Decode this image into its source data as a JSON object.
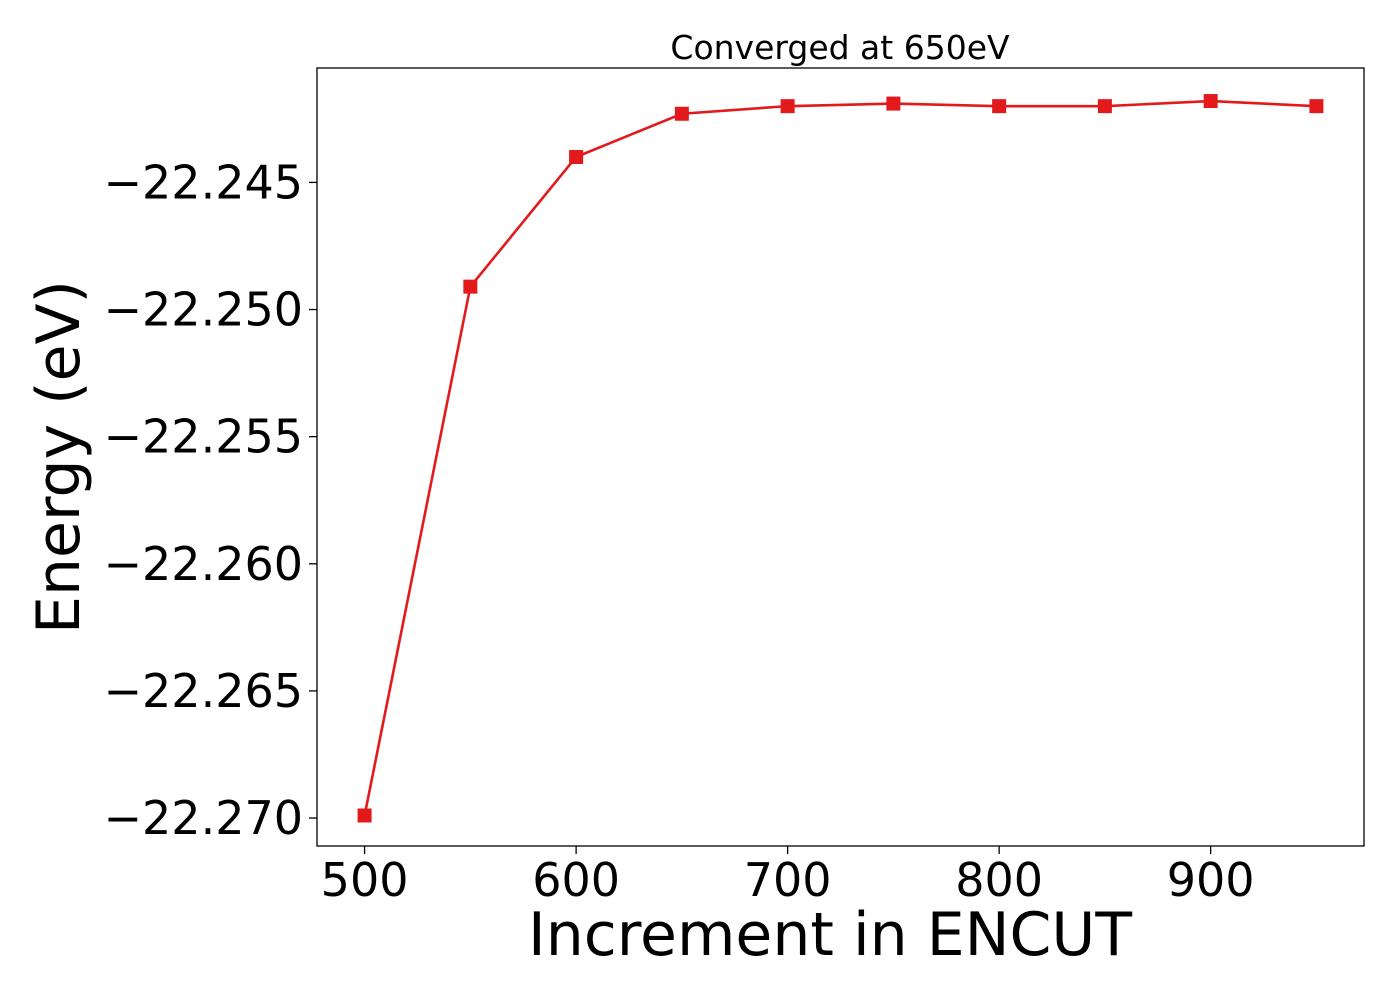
{
  "chart_data": {
    "type": "line",
    "title": "Converged at 650eV",
    "xlabel": "Increment in ENCUT",
    "ylabel": "Energy (eV)",
    "xlim": [
      477.5,
      972.5
    ],
    "ylim": [
      -22.2711,
      -22.2405
    ],
    "xticks": [
      500,
      600,
      700,
      800,
      900
    ],
    "xtick_labels": [
      "500",
      "600",
      "700",
      "800",
      "900"
    ],
    "yticks": [
      -22.245,
      -22.25,
      -22.255,
      -22.26,
      -22.265,
      -22.27
    ],
    "ytick_labels": [
      "−22.245",
      "−22.250",
      "−22.255",
      "−22.260",
      "−22.265",
      "−22.270"
    ],
    "grid": false,
    "legend": false,
    "series": [
      {
        "color": "#e31a1c",
        "marker": "square",
        "x": [
          500,
          550,
          600,
          650,
          700,
          750,
          800,
          850,
          900,
          950
        ],
        "y": [
          -22.2699,
          -22.2491,
          -22.244,
          -22.2423,
          -22.242,
          -22.2419,
          -22.242,
          -22.242,
          -22.2418,
          -22.242
        ]
      }
    ]
  }
}
